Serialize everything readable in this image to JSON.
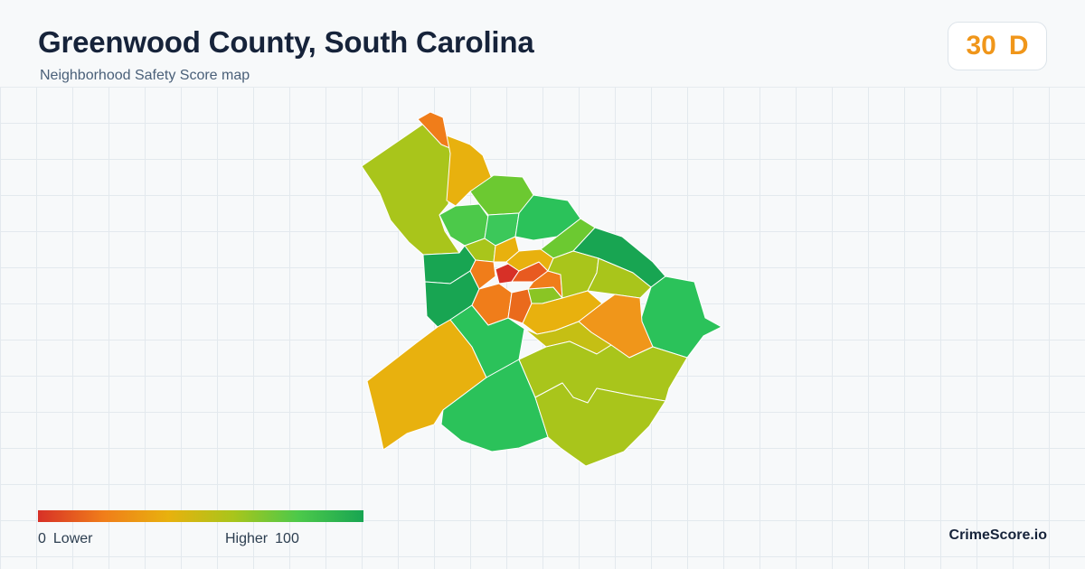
{
  "header": {
    "title": "Greenwood County, South Carolina",
    "subtitle": "Neighborhood Safety Score map"
  },
  "score": {
    "value": "30",
    "grade": "D",
    "color": "#f0961a"
  },
  "legend": {
    "min_value": "0",
    "min_label": "Lower",
    "max_label": "Higher",
    "max_value": "100",
    "colors": [
      "#d73027",
      "#f07d1a",
      "#e8b10e",
      "#a9c51b",
      "#4cc94a",
      "#18a552"
    ]
  },
  "brand": "CrimeScore.io"
}
